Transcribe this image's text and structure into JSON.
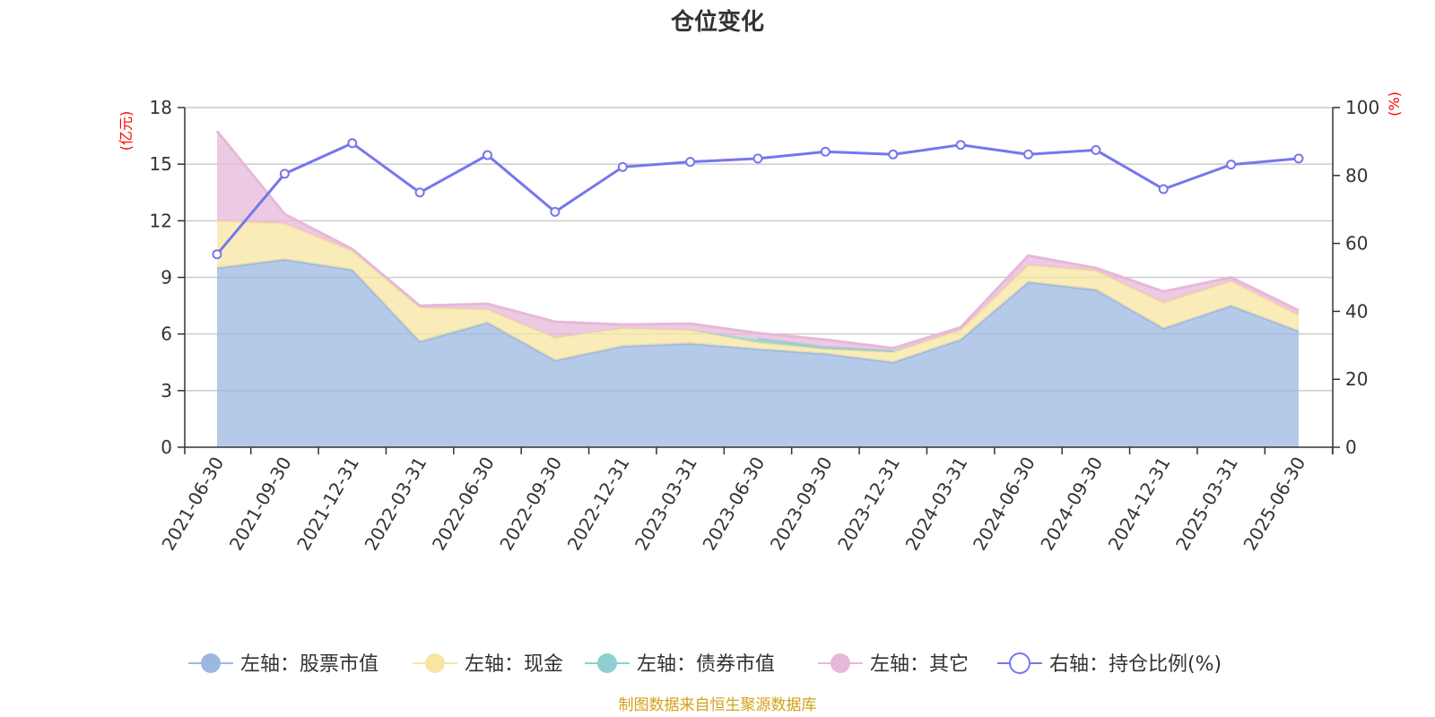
{
  "chart_data": {
    "type": "area",
    "title": "仓位变化",
    "left_axis_name": "(亿元)",
    "right_axis_name": "(%)",
    "left_ylim": [
      0,
      18
    ],
    "left_ticks": [
      0,
      3,
      6,
      9,
      12,
      15,
      18
    ],
    "right_ylim": [
      0,
      100
    ],
    "right_ticks": [
      0,
      20,
      40,
      60,
      80,
      100
    ],
    "grid": true,
    "legend_position": "bottom",
    "x": [
      "2021-06-30",
      "2021-09-30",
      "2021-12-31",
      "2022-03-31",
      "2022-06-30",
      "2022-09-30",
      "2022-12-31",
      "2023-03-31",
      "2023-06-30",
      "2023-09-30",
      "2023-12-31",
      "2024-03-31",
      "2024-06-30",
      "2024-09-30",
      "2024-12-31",
      "2025-03-31",
      "2025-06-30"
    ],
    "series": [
      {
        "name": "左轴：股票市值",
        "axis": "left",
        "kind": "stacked-area",
        "color": "#9cb8e0",
        "values": [
          9.5,
          9.95,
          9.4,
          5.6,
          6.6,
          4.6,
          5.35,
          5.5,
          5.2,
          4.95,
          4.5,
          5.7,
          8.75,
          8.35,
          6.3,
          7.5,
          6.15
        ]
      },
      {
        "name": "左轴：现金",
        "axis": "left",
        "kind": "stacked-area",
        "color": "#f7e6a1",
        "values": [
          2.5,
          1.9,
          1.0,
          1.8,
          0.7,
          1.2,
          0.95,
          0.7,
          0.35,
          0.25,
          0.55,
          0.5,
          0.9,
          1.0,
          1.35,
          1.3,
          0.85
        ]
      },
      {
        "name": "左轴：债券市值",
        "axis": "left",
        "kind": "stacked-area",
        "color": "#8ecfd1",
        "values": [
          0,
          0,
          0,
          0,
          0,
          0,
          0,
          0,
          0.2,
          0.1,
          0.05,
          0,
          0,
          0,
          0,
          0,
          0
        ]
      },
      {
        "name": "左轴：其它",
        "axis": "left",
        "kind": "stacked-area",
        "color": "#e7b8d9",
        "values": [
          4.75,
          0.5,
          0.1,
          0.1,
          0.3,
          0.85,
          0.2,
          0.35,
          0.3,
          0.4,
          0.15,
          0.15,
          0.5,
          0.15,
          0.6,
          0.2,
          0.25
        ]
      },
      {
        "name": "右轴：持仓比例(%)",
        "axis": "right",
        "kind": "line",
        "color": "#7676ee",
        "values": [
          56.8,
          80.5,
          89.5,
          75.0,
          86.0,
          69.3,
          82.5,
          84.0,
          85.0,
          87.0,
          86.2,
          89.0,
          86.2,
          87.5,
          76.0,
          83.2,
          85.0
        ]
      }
    ]
  },
  "source_text": "制图数据来自恒生聚源数据库"
}
